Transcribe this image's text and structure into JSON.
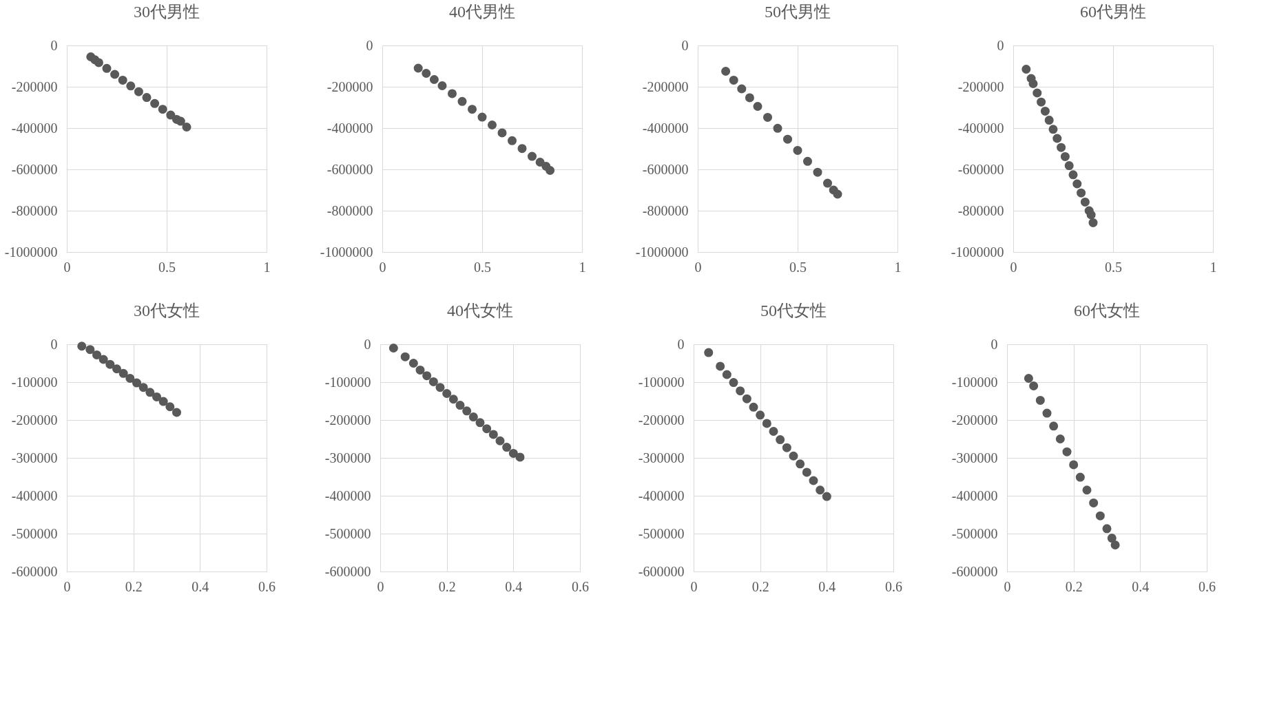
{
  "chart_data": [
    {
      "type": "scatter",
      "title": "30代男性",
      "color": "#595959",
      "marker": "circle",
      "grid": true,
      "xlim": [
        0,
        1
      ],
      "xticks": [
        0,
        0.5,
        1
      ],
      "ylim": [
        -1000000,
        0
      ],
      "yticks": [
        -1000000,
        -800000,
        -600000,
        -400000,
        -200000,
        0
      ],
      "x": [
        0.12,
        0.14,
        0.16,
        0.2,
        0.24,
        0.28,
        0.32,
        0.36,
        0.4,
        0.44,
        0.48,
        0.52,
        0.55,
        0.57,
        0.6
      ],
      "values": [
        -55000,
        -69000,
        -83000,
        -111000,
        -140000,
        -168000,
        -196000,
        -224000,
        -252000,
        -281000,
        -309000,
        -337000,
        -358000,
        -367000,
        -395000
      ]
    },
    {
      "type": "scatter",
      "title": "40代男性",
      "color": "#595959",
      "marker": "circle",
      "grid": true,
      "xlim": [
        0,
        1
      ],
      "xticks": [
        0,
        0.5,
        1
      ],
      "ylim": [
        -1000000,
        0
      ],
      "yticks": [
        -1000000,
        -800000,
        -600000,
        -400000,
        -200000,
        0
      ],
      "x": [
        0.18,
        0.22,
        0.26,
        0.3,
        0.35,
        0.4,
        0.45,
        0.5,
        0.55,
        0.6,
        0.65,
        0.7,
        0.75,
        0.79,
        0.82,
        0.84
      ],
      "values": [
        -110000,
        -135000,
        -165000,
        -195000,
        -233000,
        -271000,
        -309000,
        -347000,
        -385000,
        -423000,
        -461000,
        -499000,
        -537000,
        -565000,
        -585000,
        -605000
      ]
    },
    {
      "type": "scatter",
      "title": "50代男性",
      "color": "#595959",
      "marker": "circle",
      "grid": true,
      "xlim": [
        0,
        1
      ],
      "xticks": [
        0,
        0.5,
        1
      ],
      "ylim": [
        -1000000,
        0
      ],
      "yticks": [
        -1000000,
        -800000,
        -600000,
        -400000,
        -200000,
        0
      ],
      "x": [
        0.14,
        0.18,
        0.22,
        0.26,
        0.3,
        0.35,
        0.4,
        0.45,
        0.5,
        0.55,
        0.6,
        0.65,
        0.68,
        0.7
      ],
      "values": [
        -125000,
        -168000,
        -210000,
        -253000,
        -295000,
        -348000,
        -401000,
        -454000,
        -508000,
        -561000,
        -614000,
        -667000,
        -700000,
        -720000
      ]
    },
    {
      "type": "scatter",
      "title": "60代男性",
      "color": "#595959",
      "marker": "circle",
      "grid": true,
      "xlim": [
        0,
        1
      ],
      "xticks": [
        0,
        0.5,
        1
      ],
      "ylim": [
        -1000000,
        0
      ],
      "yticks": [
        -1000000,
        -800000,
        -600000,
        -400000,
        -200000,
        0
      ],
      "x": [
        0.065,
        0.09,
        0.1,
        0.12,
        0.14,
        0.16,
        0.18,
        0.2,
        0.22,
        0.24,
        0.26,
        0.28,
        0.3,
        0.32,
        0.34,
        0.36,
        0.38,
        0.39,
        0.4
      ],
      "values": [
        -115000,
        -160000,
        -185000,
        -230000,
        -274000,
        -318000,
        -362000,
        -406000,
        -450000,
        -494000,
        -538000,
        -582000,
        -626000,
        -670000,
        -714000,
        -758000,
        -800000,
        -820000,
        -858000
      ]
    },
    {
      "type": "scatter",
      "title": "30代女性",
      "color": "#595959",
      "marker": "circle",
      "grid": true,
      "xlim": [
        0,
        0.6
      ],
      "xticks": [
        0,
        0.2,
        0.4,
        0.6
      ],
      "ylim": [
        -600000,
        0
      ],
      "yticks": [
        -600000,
        -500000,
        -400000,
        -300000,
        -200000,
        -100000,
        0
      ],
      "x": [
        0.045,
        0.07,
        0.09,
        0.11,
        0.13,
        0.15,
        0.17,
        0.19,
        0.21,
        0.23,
        0.25,
        0.27,
        0.29,
        0.31,
        0.33
      ],
      "values": [
        -5000,
        -14000,
        -28000,
        -40000,
        -53000,
        -65000,
        -77000,
        -90000,
        -102000,
        -114000,
        -127000,
        -139000,
        -151000,
        -165000,
        -180000
      ]
    },
    {
      "type": "scatter",
      "title": "40代女性",
      "color": "#595959",
      "marker": "circle",
      "grid": true,
      "xlim": [
        0,
        0.6
      ],
      "xticks": [
        0,
        0.2,
        0.4,
        0.6
      ],
      "ylim": [
        -600000,
        0
      ],
      "yticks": [
        -600000,
        -500000,
        -400000,
        -300000,
        -200000,
        -100000,
        0
      ],
      "x": [
        0.04,
        0.075,
        0.1,
        0.12,
        0.14,
        0.16,
        0.18,
        0.2,
        0.22,
        0.24,
        0.26,
        0.28,
        0.3,
        0.32,
        0.34,
        0.36,
        0.38,
        0.4,
        0.42
      ],
      "values": [
        -10000,
        -33000,
        -50000,
        -68000,
        -83000,
        -99000,
        -114000,
        -130000,
        -145000,
        -161000,
        -176000,
        -192000,
        -207000,
        -223000,
        -238000,
        -255000,
        -272000,
        -288000,
        -298000
      ]
    },
    {
      "type": "scatter",
      "title": "50代女性",
      "color": "#595959",
      "marker": "circle",
      "grid": true,
      "xlim": [
        0,
        0.6
      ],
      "xticks": [
        0,
        0.2,
        0.4,
        0.6
      ],
      "ylim": [
        -600000,
        0
      ],
      "yticks": [
        -600000,
        -500000,
        -400000,
        -300000,
        -200000,
        -100000,
        0
      ],
      "x": [
        0.045,
        0.08,
        0.1,
        0.12,
        0.14,
        0.16,
        0.18,
        0.2,
        0.22,
        0.24,
        0.26,
        0.28,
        0.3,
        0.32,
        0.34,
        0.36,
        0.38,
        0.4
      ],
      "values": [
        -22000,
        -58000,
        -80000,
        -101000,
        -123000,
        -144000,
        -166000,
        -187000,
        -209000,
        -230000,
        -252000,
        -273000,
        -295000,
        -316000,
        -338000,
        -360000,
        -385000,
        -402000
      ]
    },
    {
      "type": "scatter",
      "title": "60代女性",
      "color": "#595959",
      "marker": "circle",
      "grid": true,
      "xlim": [
        0,
        0.6
      ],
      "xticks": [
        0,
        0.2,
        0.4,
        0.6
      ],
      "ylim": [
        -600000,
        0
      ],
      "yticks": [
        -600000,
        -500000,
        -400000,
        -300000,
        -200000,
        -100000,
        0
      ],
      "x": [
        0.065,
        0.08,
        0.1,
        0.12,
        0.14,
        0.16,
        0.18,
        0.2,
        0.22,
        0.24,
        0.26,
        0.28,
        0.3,
        0.315,
        0.325
      ],
      "values": [
        -90000,
        -110000,
        -148000,
        -182000,
        -216000,
        -250000,
        -284000,
        -318000,
        -351000,
        -385000,
        -419000,
        -453000,
        -487000,
        -512000,
        -530000
      ]
    }
  ]
}
